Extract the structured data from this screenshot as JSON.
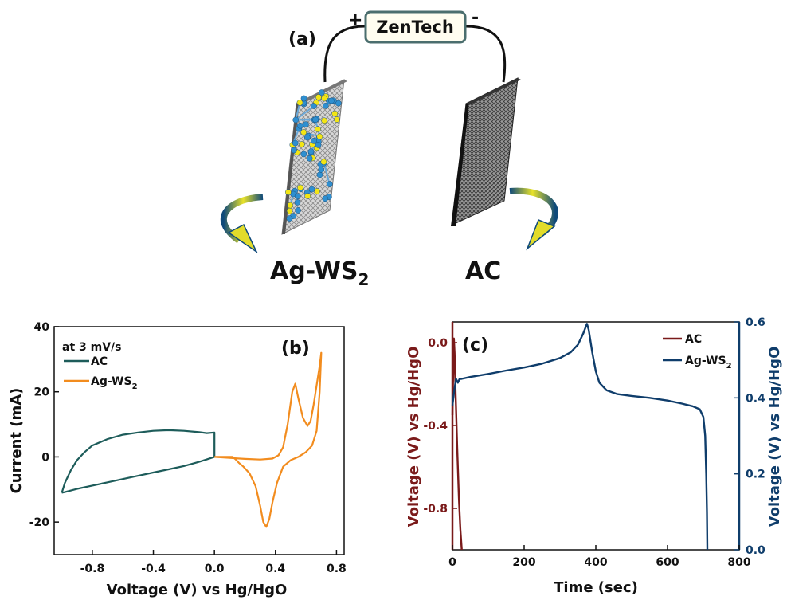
{
  "panel_a": {
    "label": "(a)",
    "source_label": "ZenTech",
    "plus": "+",
    "minus": "-",
    "left_electrode": {
      "label_main": "Ag-WS",
      "label_sub": "2"
    },
    "right_electrode": {
      "label": "AC"
    }
  },
  "chart_data": [
    {
      "type": "line",
      "panel_label": "(b)",
      "annotation": "at 3 mV/s",
      "xlabel": "Voltage (V) vs Hg/HgO",
      "ylabel": "Current (mA)",
      "xlim": [
        -1.05,
        0.85
      ],
      "ylim": [
        -30,
        40
      ],
      "xticks": [
        -0.8,
        -0.4,
        0.0,
        0.4,
        0.8
      ],
      "xtick_labels": [
        "-0.8",
        "-0.4",
        "0.0",
        "0.4",
        "0.8"
      ],
      "yticks": [
        -20,
        0,
        20,
        40
      ],
      "ytick_labels": [
        "-20",
        "0",
        "20",
        "40"
      ],
      "legend_position": "top-left",
      "series": [
        {
          "name": "AC",
          "color": "#1d5c5a",
          "points": [
            [
              -1.0,
              -11
            ],
            [
              -0.98,
              -8
            ],
            [
              -0.94,
              -4
            ],
            [
              -0.9,
              -1
            ],
            [
              -0.85,
              1.5
            ],
            [
              -0.8,
              3.5
            ],
            [
              -0.7,
              5.5
            ],
            [
              -0.6,
              6.8
            ],
            [
              -0.5,
              7.5
            ],
            [
              -0.4,
              8.0
            ],
            [
              -0.3,
              8.2
            ],
            [
              -0.2,
              8.0
            ],
            [
              -0.1,
              7.6
            ],
            [
              -0.05,
              7.3
            ],
            [
              0.0,
              7.5
            ],
            [
              0.0,
              0.0
            ],
            [
              -0.1,
              -1.5
            ],
            [
              -0.2,
              -2.8
            ],
            [
              -0.3,
              -3.8
            ],
            [
              -0.4,
              -4.8
            ],
            [
              -0.5,
              -5.8
            ],
            [
              -0.6,
              -6.8
            ],
            [
              -0.7,
              -7.8
            ],
            [
              -0.8,
              -8.8
            ],
            [
              -0.9,
              -9.8
            ],
            [
              -0.98,
              -10.8
            ],
            [
              -1.0,
              -11
            ]
          ]
        },
        {
          "name": "Ag-WS",
          "name_sub": "2",
          "color": "#f28c1e",
          "points": [
            [
              0.0,
              0.0
            ],
            [
              0.1,
              -0.3
            ],
            [
              0.2,
              -0.6
            ],
            [
              0.3,
              -0.8
            ],
            [
              0.38,
              -0.5
            ],
            [
              0.42,
              0.5
            ],
            [
              0.45,
              3.0
            ],
            [
              0.48,
              10.0
            ],
            [
              0.51,
              20.0
            ],
            [
              0.53,
              22.5
            ],
            [
              0.55,
              18.0
            ],
            [
              0.58,
              12.0
            ],
            [
              0.61,
              9.5
            ],
            [
              0.63,
              11.0
            ],
            [
              0.65,
              16.0
            ],
            [
              0.67,
              22.0
            ],
            [
              0.69,
              28.0
            ],
            [
              0.7,
              32.0
            ],
            [
              0.69,
              20.0
            ],
            [
              0.67,
              8.0
            ],
            [
              0.64,
              3.5
            ],
            [
              0.6,
              1.5
            ],
            [
              0.55,
              0.0
            ],
            [
              0.5,
              -1.0
            ],
            [
              0.45,
              -3.0
            ],
            [
              0.41,
              -8.0
            ],
            [
              0.38,
              -14.0
            ],
            [
              0.36,
              -19.0
            ],
            [
              0.34,
              -21.5
            ],
            [
              0.32,
              -20.0
            ],
            [
              0.3,
              -15.0
            ],
            [
              0.27,
              -9.0
            ],
            [
              0.23,
              -5.0
            ],
            [
              0.19,
              -3.0
            ],
            [
              0.16,
              -1.8
            ],
            [
              0.14,
              -0.8
            ],
            [
              0.12,
              0.0
            ],
            [
              0.08,
              0.0
            ],
            [
              0.03,
              0.0
            ],
            [
              0.0,
              0.0
            ]
          ]
        }
      ]
    },
    {
      "type": "line",
      "panel_label": "(c)",
      "xlabel": "Time (sec)",
      "ylabel_left": "Voltage (V) vs Hg/HgO",
      "ylabel_right": "Voltage (V) vs Hg/HgO",
      "xlim": [
        0,
        800
      ],
      "ylim_left": [
        -1.0,
        0.1
      ],
      "ylim_right": [
        0.0,
        0.6
      ],
      "xticks": [
        0,
        200,
        400,
        600,
        800
      ],
      "xtick_labels": [
        "0",
        "200",
        "400",
        "600",
        "800"
      ],
      "yticks_left": [
        -0.8,
        -0.4,
        0.0
      ],
      "ytick_labels_left": [
        "-0.8",
        "-0.4",
        "0.0"
      ],
      "yticks_right": [
        0.0,
        0.2,
        0.4,
        0.6
      ],
      "ytick_labels_right": [
        "0.0",
        "0.2",
        "0.4",
        "0.6"
      ],
      "legend_position": "top-right",
      "left_axis_color": "#7a1a1a",
      "right_axis_color": "#0f3d6b",
      "series": [
        {
          "name": "AC",
          "axis": "left",
          "color": "#7a1a1a",
          "points": [
            [
              0,
              -0.35
            ],
            [
              2,
              -0.15
            ],
            [
              4,
              0.02
            ],
            [
              6,
              -0.05
            ],
            [
              9,
              -0.25
            ],
            [
              13,
              -0.5
            ],
            [
              18,
              -0.75
            ],
            [
              22,
              -0.9
            ],
            [
              26,
              -1.0
            ]
          ]
        },
        {
          "name": "Ag-WS",
          "name_sub": "2",
          "axis": "right",
          "color": "#0f3d6b",
          "points": [
            [
              0,
              0.38
            ],
            [
              5,
              0.42
            ],
            [
              10,
              0.45
            ],
            [
              15,
              0.44
            ],
            [
              20,
              0.45
            ],
            [
              25,
              0.45
            ],
            [
              50,
              0.455
            ],
            [
              100,
              0.463
            ],
            [
              150,
              0.472
            ],
            [
              200,
              0.48
            ],
            [
              250,
              0.49
            ],
            [
              300,
              0.505
            ],
            [
              330,
              0.52
            ],
            [
              350,
              0.54
            ],
            [
              365,
              0.57
            ],
            [
              375,
              0.595
            ],
            [
              380,
              0.58
            ],
            [
              390,
              0.52
            ],
            [
              400,
              0.47
            ],
            [
              410,
              0.44
            ],
            [
              430,
              0.42
            ],
            [
              460,
              0.41
            ],
            [
              500,
              0.405
            ],
            [
              550,
              0.4
            ],
            [
              600,
              0.393
            ],
            [
              640,
              0.385
            ],
            [
              670,
              0.378
            ],
            [
              690,
              0.37
            ],
            [
              700,
              0.35
            ],
            [
              705,
              0.3
            ],
            [
              708,
              0.2
            ],
            [
              710,
              0.1
            ],
            [
              711,
              0.0
            ]
          ]
        }
      ]
    }
  ]
}
